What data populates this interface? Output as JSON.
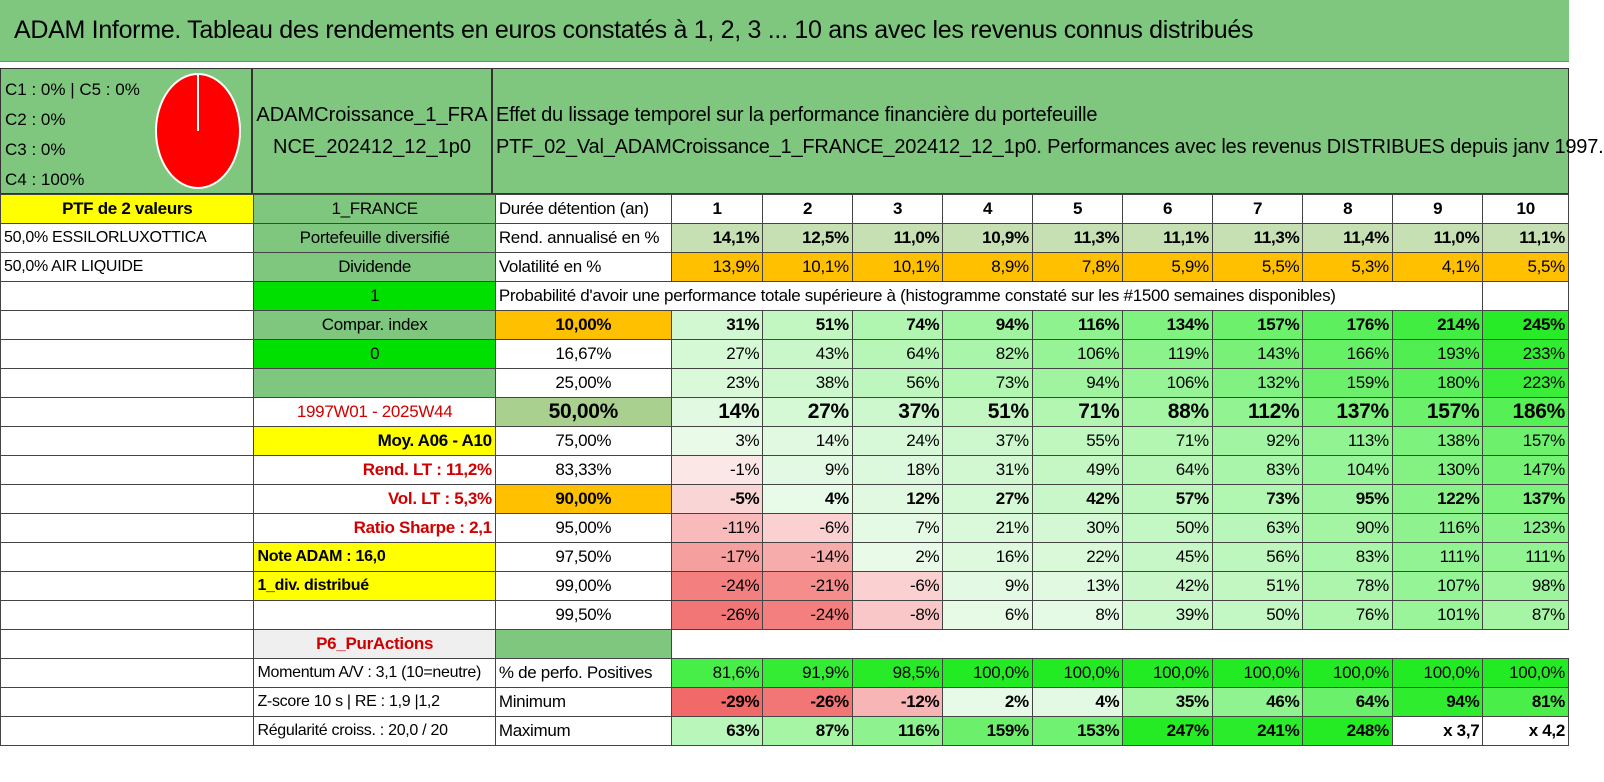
{
  "title": "ADAM Informe. Tableau des rendements en euros constatés à 1, 2, 3 ... 10 ans avec les revenus connus distribués",
  "legend": [
    "C1 : 0% | C5 : 0%",
    "C2 : 0%",
    "C3 : 0%",
    "C4 : 100%"
  ],
  "pie": {
    "C4": 100,
    "color": "#ff0000"
  },
  "portfolio_name": "ADAMCroissance_1_FRANCE_202412_12_1p0",
  "description": [
    "Effet du lissage temporel sur la performance financière du portefeuille",
    "PTF_02_Val_ADAMCroissance_1_FRANCE_202412_12_1p0. Performances avec les revenus DISTRIBUES depuis janv 1997."
  ],
  "left_col": [
    "PTF de 2 valeurs",
    "50,0% ESSILORLUXOTTICA",
    "50,0% AIR LIQUIDE",
    "",
    "",
    "",
    "",
    "",
    "",
    "",
    "",
    "",
    "",
    "",
    "",
    "",
    "",
    "",
    "",
    ""
  ],
  "mid_col": [
    "1_FRANCE",
    "Portefeuille diversifié",
    "Dividende",
    "1",
    "Compar. index",
    "0",
    "",
    "1997W01 - 2025W44",
    "Moy. A06 - A10",
    "Rend. LT : 11,2%",
    "Vol. LT : 5,3%",
    "Ratio Sharpe : 2,1",
    "Note ADAM : 16,0",
    "1_div. distribué",
    "",
    "P6_PurActions",
    "Momentum A/V : 3,1 (10=neutre)",
    "Z-score 10 s | RE : 1,9 |1,2",
    "Régularité croiss. : 20,0 / 20"
  ],
  "years_header": {
    "label": "Durée détention (an)",
    "years": [
      "1",
      "2",
      "3",
      "4",
      "5",
      "6",
      "7",
      "8",
      "9",
      "10"
    ]
  },
  "rend": {
    "label": "Rend. annualisé en %",
    "values": [
      "14,1%",
      "12,5%",
      "11,0%",
      "10,9%",
      "11,3%",
      "11,1%",
      "11,3%",
      "11,4%",
      "11,0%",
      "11,1%"
    ]
  },
  "vol": {
    "label": "Volatilité en %",
    "values": [
      "13,9%",
      "10,1%",
      "10,1%",
      "8,9%",
      "7,8%",
      "5,9%",
      "5,5%",
      "5,3%",
      "4,1%",
      "5,5%"
    ]
  },
  "proba_title": "Probabilité d'avoir une performance totale supérieure à (histogramme constaté sur les #1500 semaines disponibles)",
  "proba_rows": [
    {
      "p": "10,00%",
      "v": [
        "31%",
        "51%",
        "74%",
        "94%",
        "116%",
        "134%",
        "157%",
        "176%",
        "214%",
        "245%"
      ]
    },
    {
      "p": "16,67%",
      "v": [
        "27%",
        "43%",
        "64%",
        "82%",
        "106%",
        "119%",
        "143%",
        "166%",
        "193%",
        "233%"
      ]
    },
    {
      "p": "25,00%",
      "v": [
        "23%",
        "38%",
        "56%",
        "73%",
        "94%",
        "106%",
        "132%",
        "159%",
        "180%",
        "223%"
      ]
    },
    {
      "p": "50,00%",
      "v": [
        "14%",
        "27%",
        "37%",
        "51%",
        "71%",
        "88%",
        "112%",
        "137%",
        "157%",
        "186%"
      ]
    },
    {
      "p": "75,00%",
      "v": [
        "3%",
        "14%",
        "24%",
        "37%",
        "55%",
        "71%",
        "92%",
        "113%",
        "138%",
        "157%"
      ]
    },
    {
      "p": "83,33%",
      "v": [
        "-1%",
        "9%",
        "18%",
        "31%",
        "49%",
        "64%",
        "83%",
        "104%",
        "130%",
        "147%"
      ]
    },
    {
      "p": "90,00%",
      "v": [
        "-5%",
        "4%",
        "12%",
        "27%",
        "42%",
        "57%",
        "73%",
        "95%",
        "122%",
        "137%"
      ]
    },
    {
      "p": "95,00%",
      "v": [
        "-11%",
        "-6%",
        "7%",
        "21%",
        "30%",
        "50%",
        "63%",
        "90%",
        "116%",
        "123%"
      ]
    },
    {
      "p": "97,50%",
      "v": [
        "-17%",
        "-14%",
        "2%",
        "16%",
        "22%",
        "45%",
        "56%",
        "83%",
        "111%",
        "111%"
      ]
    },
    {
      "p": "99,00%",
      "v": [
        "-24%",
        "-21%",
        "-6%",
        "9%",
        "13%",
        "42%",
        "51%",
        "78%",
        "107%",
        "98%"
      ]
    },
    {
      "p": "99,50%",
      "v": [
        "-26%",
        "-24%",
        "-8%",
        "6%",
        "8%",
        "39%",
        "50%",
        "76%",
        "101%",
        "87%"
      ]
    }
  ],
  "positives": {
    "label": "% de perfo. Positives",
    "values": [
      "81,6%",
      "91,9%",
      "98,5%",
      "100,0%",
      "100,0%",
      "100,0%",
      "100,0%",
      "100,0%",
      "100,0%",
      "100,0%"
    ]
  },
  "minimum": {
    "label": "Minimum",
    "values": [
      "-29%",
      "-26%",
      "-12%",
      "2%",
      "4%",
      "35%",
      "46%",
      "64%",
      "94%",
      "81%"
    ]
  },
  "maximum": {
    "label": "Maximum",
    "values": [
      "63%",
      "87%",
      "116%",
      "159%",
      "153%",
      "247%",
      "241%",
      "248%",
      "x 3,7",
      "x 4,2"
    ]
  },
  "colors": {
    "header_green": "#7fc77f",
    "yellow": "#ffff00",
    "orange": "#ffc000",
    "bright_green": "#00e000",
    "red_text": "#d00000"
  }
}
